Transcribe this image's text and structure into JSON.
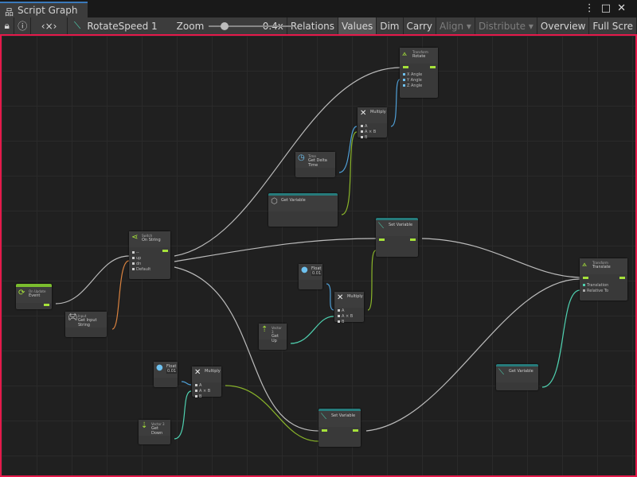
{
  "window": {
    "tab_title": "Script Graph",
    "tab_icon": "hierarchy-icon"
  },
  "toolbar": {
    "graph_name": "RotateSpeed 1",
    "zoom_label": "Zoom",
    "zoom_value": "0.4x",
    "zoom_fraction": 0.15,
    "buttons": [
      {
        "label": "Relations",
        "active": false
      },
      {
        "label": "Values",
        "active": true
      },
      {
        "label": "Dim",
        "active": false
      },
      {
        "label": "Carry",
        "active": false
      },
      {
        "label": "Align ▾",
        "disabled": true
      },
      {
        "label": "Distribute ▾",
        "disabled": true
      },
      {
        "label": "Overview"
      },
      {
        "label": "Full Scre"
      }
    ]
  },
  "colors": {
    "flow": "#a6e23a",
    "float": "#6ec1ef",
    "vector": "#4fd1b0",
    "string": "#e8874a",
    "selection": "#e5194a",
    "header_teal": "#267b7b"
  },
  "nodes": {
    "on_update": {
      "title": "On Update",
      "subtitle": "Event"
    },
    "input": {
      "title": "Input",
      "subtitle": "Get Input String"
    },
    "switch": {
      "title": "Switch",
      "subtitle": "On String",
      "ports": [
        "--",
        "up",
        "dn",
        "Default"
      ]
    },
    "time": {
      "title": "Time",
      "subtitle": "Get Delta Time"
    },
    "get_var_top": {
      "title": "Get Variable"
    },
    "multiply_top": {
      "title": "Multiply",
      "ports": [
        "A",
        "A × B",
        "B"
      ]
    },
    "rotate": {
      "title": "Transform",
      "subtitle": "Rotate",
      "ports": [
        "X Angle",
        "Y Angle",
        "Z Angle"
      ]
    },
    "set_var_mid": {
      "title": "Set Variable"
    },
    "float_mid": {
      "title": "Float",
      "value": "0.01"
    },
    "multiply_mid": {
      "title": "Multiply",
      "ports": [
        "A",
        "A × B",
        "B"
      ]
    },
    "get_up": {
      "title": "Vector 3",
      "subtitle": "Get Up"
    },
    "float_bot": {
      "title": "Float",
      "value": "0.01"
    },
    "multiply_bot": {
      "title": "Multiply",
      "ports": [
        "A",
        "A × B",
        "B"
      ]
    },
    "get_down": {
      "title": "Vector 3",
      "subtitle": "Get Down"
    },
    "set_var_bot": {
      "title": "Set Variable"
    },
    "translate": {
      "title": "Transform",
      "subtitle": "Translate",
      "ports": [
        "Translation",
        "Relative To"
      ]
    },
    "get_var_right": {
      "title": "Get Variable"
    }
  }
}
